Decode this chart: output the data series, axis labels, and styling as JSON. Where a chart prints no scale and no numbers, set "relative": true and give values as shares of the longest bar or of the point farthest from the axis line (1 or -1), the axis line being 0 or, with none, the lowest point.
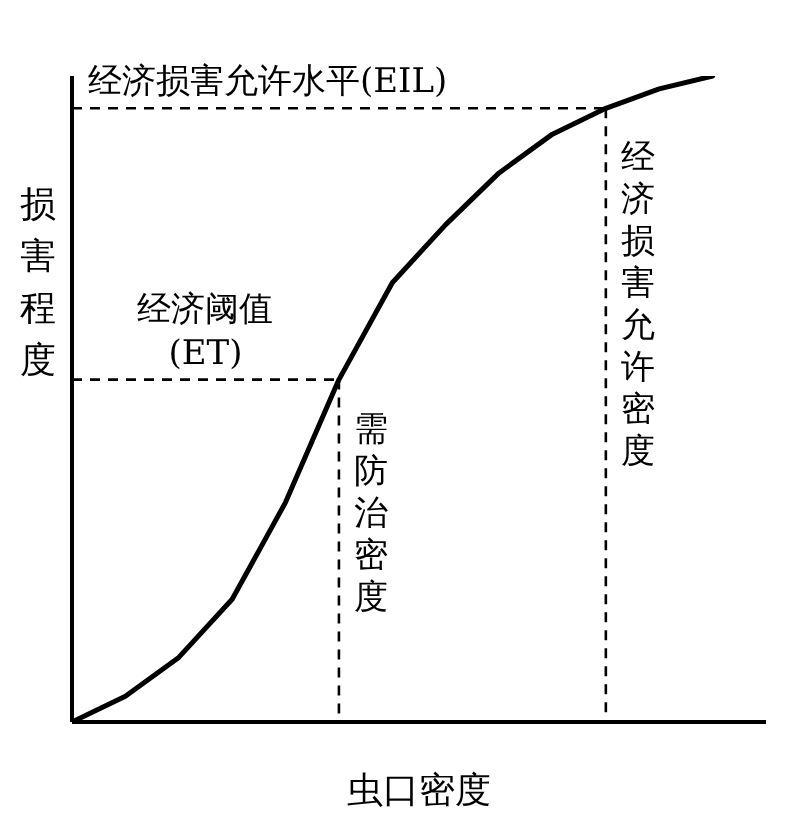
{
  "chart_data": {
    "type": "line",
    "relative": true,
    "xlabel": "虫口密度",
    "ylabel": "损害程度",
    "grid": false,
    "legend": false,
    "marker": "none",
    "line_style": "solid",
    "categories": [
      null,
      null,
      null,
      null,
      null,
      null,
      null,
      null,
      null,
      null,
      null,
      null,
      null,
      null
    ],
    "series": [
      {
        "color": "#000000",
        "values": [
          0,
          0.04,
          0.1,
          0.19,
          0.34,
          0.53,
          0.68,
          0.77,
          0.85,
          0.91,
          0.95,
          0.98,
          1,
          null
        ]
      }
    ],
    "ref_lines": [
      {
        "axis": "y",
        "value": 0.53,
        "label": "经济阈值(ET)",
        "line_style": "dashed",
        "color": "#000000"
      },
      {
        "axis": "y",
        "value": 0.95,
        "label": "经济损害允许水平(EIL)",
        "line_style": "dashed",
        "color": "#000000"
      }
    ],
    "annotations": [
      "需防治密度",
      "经济损害允许密度"
    ]
  }
}
